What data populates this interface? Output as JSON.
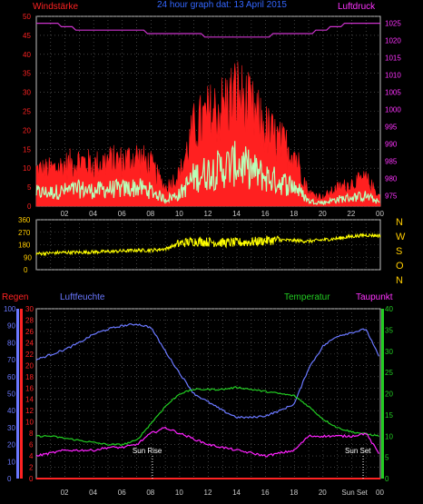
{
  "header": {
    "windstaerke": "Windstärke",
    "title": "24 hour graph dat: 13 April 2015",
    "luftdruck": "Luftdruck"
  },
  "colors": {
    "wind": "#ff2020",
    "gust_fill": "#ffffff",
    "gust": "#b8ffb8",
    "pressure": "#cc33cc",
    "direction": "#ffff00",
    "humidity": "#6a78ff",
    "temperature": "#22cc22",
    "dewpoint": "#ff22ff",
    "rain": "#ff2222",
    "title": "#3366ff",
    "axis_red": "#ff2222",
    "axis_mag": "#ff33ff",
    "axis_blue": "#6a78ff",
    "axis_green": "#22cc22",
    "axis_yellow": "#ffcc00"
  },
  "compass_letters": [
    "N",
    "W",
    "S",
    "O",
    "N"
  ],
  "x_labels_top": [
    "02",
    "04",
    "06",
    "08",
    "10",
    "12",
    "14",
    "16",
    "18",
    "20",
    "22",
    "00"
  ],
  "x_labels_bottom": [
    "02",
    "04",
    "06",
    "08",
    "10",
    "12",
    "14",
    "16",
    "18",
    "20",
    "Sun Set",
    "00"
  ],
  "bottom_headers": {
    "regen": "Regen",
    "luftfeuchte": "Luftfeuchte",
    "temperatur": "Temperatur",
    "taupunkt": "Taupunkt"
  },
  "annotations": {
    "sunrise": "Sun Rise",
    "sunset": "Sun Set"
  },
  "chart_data": [
    {
      "type": "line",
      "name": "wind-pressure",
      "x_hours": [
        0,
        1,
        2,
        3,
        4,
        5,
        6,
        7,
        8,
        9,
        10,
        11,
        12,
        13,
        14,
        15,
        16,
        17,
        18,
        19,
        20,
        21,
        22,
        23,
        24
      ],
      "series": [
        {
          "name": "Windstärke",
          "axis": "left",
          "values": [
            8,
            8,
            9,
            10,
            9,
            10,
            10,
            11,
            9,
            4,
            7,
            17,
            20,
            22,
            25,
            21,
            17,
            14,
            12,
            3,
            2,
            4,
            5,
            6,
            2
          ]
        },
        {
          "name": "Luftdruck",
          "axis": "right",
          "values": [
            1025,
            1025,
            1024,
            1023,
            1023,
            1023,
            1023,
            1023,
            1022,
            1022,
            1022,
            1022,
            1021,
            1021,
            1021,
            1021,
            1021,
            1022,
            1022,
            1022,
            1023,
            1024,
            1025,
            1025,
            1025
          ]
        }
      ],
      "ylim_left": [
        0,
        50
      ],
      "ylim_right": [
        972,
        1027
      ],
      "y_ticks_left": [
        0,
        5,
        10,
        15,
        20,
        25,
        30,
        35,
        40,
        45,
        50
      ],
      "y_ticks_right": [
        975,
        980,
        985,
        990,
        995,
        1000,
        1005,
        1010,
        1015,
        1020,
        1025
      ]
    },
    {
      "type": "line",
      "name": "wind-direction",
      "x_hours": [
        0,
        1,
        2,
        3,
        4,
        5,
        6,
        7,
        8,
        9,
        10,
        11,
        12,
        13,
        14,
        15,
        16,
        17,
        18,
        19,
        20,
        21,
        22,
        23,
        24
      ],
      "series": [
        {
          "name": "Windrichtung",
          "values": [
            115,
            120,
            125,
            125,
            128,
            130,
            135,
            140,
            140,
            150,
            190,
            205,
            200,
            195,
            195,
            200,
            210,
            215,
            210,
            205,
            215,
            225,
            240,
            250,
            245
          ]
        }
      ],
      "ylim": [
        0,
        360
      ],
      "y_ticks": [
        0,
        90,
        180,
        270,
        360
      ]
    },
    {
      "type": "line",
      "name": "humidity-temperature",
      "x_hours": [
        0,
        1,
        2,
        3,
        4,
        5,
        6,
        7,
        8,
        9,
        10,
        11,
        12,
        13,
        14,
        15,
        16,
        17,
        18,
        19,
        20,
        21,
        22,
        23,
        24
      ],
      "series": [
        {
          "name": "Luftfeuchte",
          "axis": "humidity",
          "values": [
            70,
            73,
            76,
            80,
            85,
            88,
            90,
            91,
            89,
            75,
            62,
            50,
            45,
            40,
            36,
            36,
            37,
            40,
            44,
            65,
            78,
            84,
            86,
            88,
            70
          ]
        },
        {
          "name": "Temperatur",
          "axis": "temperature",
          "values": [
            10,
            10,
            9.5,
            9,
            8.5,
            8,
            8,
            9,
            13,
            17,
            20,
            21,
            21,
            21,
            21.5,
            21,
            20.5,
            20,
            19.5,
            17,
            14,
            12,
            11,
            10.5,
            10
          ]
        },
        {
          "name": "Taupunkt",
          "axis": "dewpoint",
          "values": [
            4,
            4.5,
            5,
            5,
            5,
            5.5,
            5.5,
            6,
            8,
            9,
            8,
            7,
            6,
            5.5,
            5,
            4.5,
            4,
            4.5,
            5,
            7.5,
            7.5,
            7.5,
            7.5,
            8,
            4
          ]
        },
        {
          "name": "Regen",
          "axis": "dewpoint",
          "values": [
            0,
            0,
            0,
            0,
            0,
            0,
            0,
            0,
            0,
            0,
            0,
            0,
            0,
            0,
            0,
            0,
            0,
            0,
            0,
            0,
            0,
            0,
            0,
            0,
            0
          ]
        }
      ],
      "ylim_humidity": [
        0,
        100
      ],
      "ylim_dewpoint": [
        0,
        30
      ],
      "ylim_temperature": [
        0,
        40
      ],
      "y_ticks_humidity": [
        0,
        10,
        20,
        30,
        40,
        50,
        60,
        70,
        80,
        90,
        100
      ],
      "y_ticks_dewpoint": [
        0,
        2,
        4,
        6,
        8,
        10,
        12,
        14,
        16,
        18,
        20,
        22,
        24,
        26,
        28,
        30
      ],
      "y_ticks_temperature": [
        0,
        5,
        10,
        15,
        20,
        25,
        30,
        35,
        40
      ],
      "sunrise_hour": 8.1,
      "sunset_hour": 22.8
    }
  ]
}
